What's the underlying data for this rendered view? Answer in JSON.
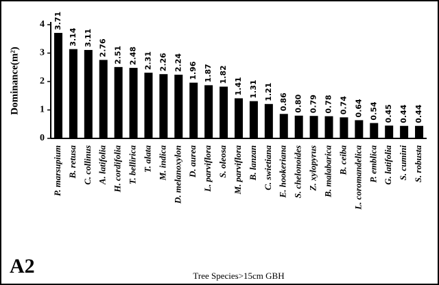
{
  "chart_data": {
    "type": "bar",
    "title": "A2",
    "x_label": "Tree Species>15cm GBH",
    "y_label": "Dominance(m²)",
    "categories": [
      "P. marsupium",
      "B. retusa",
      "C. collinus",
      "A. latifolia",
      "H. cordifolia",
      "T. bellirica",
      "T. alata",
      "M. indica",
      "D. melanoxylon",
      "D. aurea",
      "L. parviflora",
      "S. oleosa",
      "M. parviflora",
      "B. lanzan",
      "C. swietiana",
      "E. hookeriana",
      "S. chelonoides",
      "Z. xylopyrus",
      "B. malabarica",
      "B. ceiba",
      "L. coromandelica",
      "P. emblica",
      "G. latifolia",
      "S. cumini",
      "S. robusta"
    ],
    "values": [
      3.71,
      3.14,
      3.11,
      2.76,
      2.51,
      2.48,
      2.31,
      2.26,
      2.24,
      1.96,
      1.87,
      1.82,
      1.41,
      1.31,
      1.21,
      0.86,
      0.8,
      0.79,
      0.78,
      0.74,
      0.64,
      0.54,
      0.45,
      0.44,
      0.44
    ],
    "value_labels": [
      "3.71",
      "3.14",
      "3.11",
      "2.76",
      "2.51",
      "2.48",
      "2.31",
      "2.26",
      "2.24",
      "1.96",
      "1.87",
      "1.82",
      "1.41",
      "1.31",
      "1.21",
      "0.86",
      "0.80",
      "0.79",
      "0.78",
      "0.74",
      "0.64",
      "0.54",
      "0.45",
      "0.44",
      "0.44"
    ],
    "color": "#000000",
    "ylim": [
      0,
      4
    ],
    "yticks": [
      0,
      1,
      2,
      3,
      4
    ],
    "grid": false
  }
}
